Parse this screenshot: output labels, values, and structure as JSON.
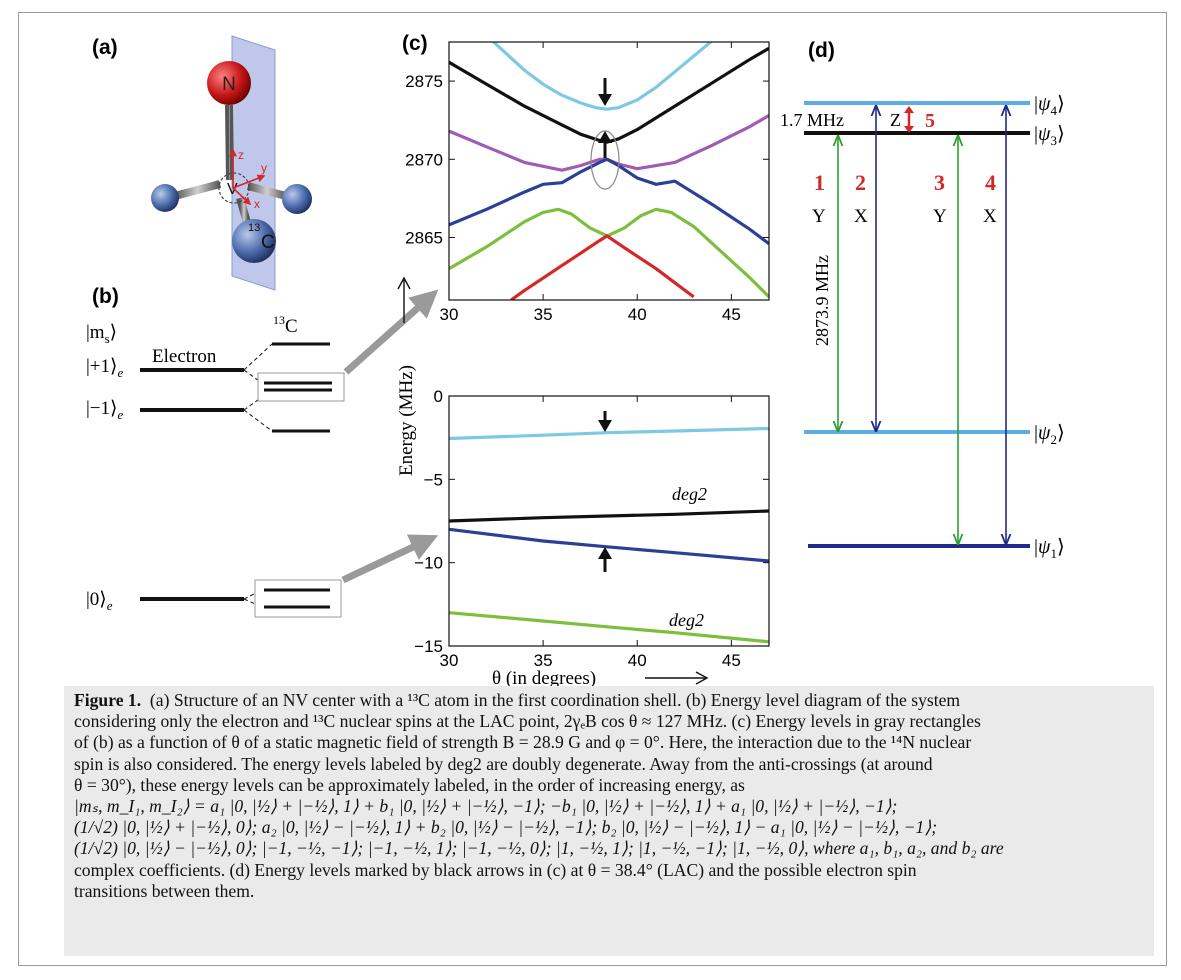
{
  "panels": {
    "a": {
      "label": "(a)",
      "atoms": {
        "n": "N",
        "v": "V",
        "c13_sup": "13",
        "c13": "C"
      },
      "axes": [
        "z",
        "y",
        "x"
      ]
    },
    "b": {
      "label": "(b)",
      "ms_label": "|m",
      "ms_sub": "s",
      "ms_close": "⟩",
      "electron": "Electron",
      "c13_sup": "13",
      "c13": "C",
      "state_plus1": "|+1⟩",
      "state_minus1": "|−1⟩",
      "state_zero": "|0⟩",
      "sub_e": "e"
    },
    "c": {
      "label": "(c)",
      "ylabel": "Energy (MHz)",
      "xlabel": "θ (in degrees)",
      "deg2": "deg2"
    },
    "d": {
      "label": "(d)",
      "levels": [
        "|ψ4⟩",
        "|ψ3⟩",
        "|ψ2⟩",
        "|ψ1⟩"
      ],
      "level_names": [
        "ψ4",
        "ψ3",
        "ψ2",
        "ψ1"
      ],
      "split_label": "1.7 MHz",
      "z_label": "Z",
      "five": "5",
      "transition_numbers": [
        "1",
        "2",
        "3",
        "4"
      ],
      "transition_axes": [
        "Y",
        "X",
        "Y",
        "X"
      ],
      "big_gap": "2873.9 MHz",
      "colors": {
        "green": "#2ca02c",
        "navy": "#1f2a8a",
        "red": "#d62728",
        "light_blue": "#5dade2",
        "black": "#111111"
      }
    }
  },
  "chart_data": [
    {
      "type": "line",
      "title": "",
      "xlabel": "",
      "ylabel": "",
      "xlim": [
        30,
        47
      ],
      "ylim": [
        2861,
        2877.5
      ],
      "xticks": [
        30,
        35,
        40,
        45
      ],
      "yticks": [
        2865,
        2870,
        2875
      ],
      "series": [
        {
          "color": "#7ec8e3",
          "x": [
            30,
            31,
            32,
            33,
            34,
            35,
            36,
            37,
            37.8,
            38.4,
            39,
            40,
            41,
            42,
            43,
            44,
            45,
            46,
            47
          ],
          "y": [
            2880.4,
            2879.0,
            2877.9,
            2876.8,
            2875.7,
            2874.8,
            2874.1,
            2873.6,
            2873.3,
            2873.2,
            2873.3,
            2873.8,
            2874.6,
            2875.6,
            2876.6,
            2877.6,
            2878.6,
            2879.6,
            2880.6
          ]
        },
        {
          "color": "#111111",
          "x": [
            30,
            32,
            34,
            36,
            37,
            38,
            38.4,
            39,
            40,
            42,
            44,
            46,
            47
          ],
          "y": [
            2876.2,
            2874.8,
            2873.4,
            2872.2,
            2871.6,
            2871.2,
            2871.1,
            2871.3,
            2871.9,
            2873.4,
            2874.9,
            2876.4,
            2877.1
          ]
        },
        {
          "color": "#a05cb4",
          "x": [
            30,
            32,
            34,
            36,
            37,
            38,
            38.4,
            39,
            40,
            42,
            44,
            46,
            47
          ],
          "y": [
            2871.8,
            2870.8,
            2869.8,
            2869.3,
            2869.6,
            2870.0,
            2870.0,
            2869.7,
            2869.4,
            2869.8,
            2870.9,
            2872.1,
            2872.8
          ]
        },
        {
          "color": "#2b3f96",
          "x": [
            30,
            32,
            34,
            35,
            36,
            37,
            38,
            38.4,
            39,
            40,
            41,
            42,
            44,
            46,
            47
          ],
          "y": [
            2865.8,
            2866.8,
            2867.9,
            2868.4,
            2868.5,
            2869.2,
            2869.8,
            2870.0,
            2869.6,
            2868.8,
            2868.4,
            2868.6,
            2867.1,
            2865.5,
            2864.6
          ]
        },
        {
          "color": "#7cbf3c",
          "x": [
            30,
            31,
            32,
            33,
            34,
            35,
            35.8,
            36.5,
            37.5,
            38.4,
            39.3,
            40.2,
            41,
            41.8,
            43,
            44,
            45,
            46,
            47
          ],
          "y": [
            2863.0,
            2863.7,
            2864.4,
            2865.2,
            2866.0,
            2866.6,
            2866.8,
            2866.5,
            2865.6,
            2865.1,
            2865.6,
            2866.4,
            2866.8,
            2866.6,
            2865.7,
            2864.6,
            2863.5,
            2862.4,
            2861.2
          ]
        },
        {
          "color": "#d62728",
          "x": [
            33.3,
            34,
            35,
            36,
            37,
            38,
            38.4,
            39,
            40,
            41,
            42,
            43
          ],
          "y": [
            2861.0,
            2861.6,
            2862.4,
            2863.2,
            2864.0,
            2864.8,
            2865.1,
            2864.6,
            2863.8,
            2863.0,
            2862.1,
            2861.2
          ]
        }
      ]
    },
    {
      "type": "line",
      "title": "",
      "xlabel": "θ (in degrees)",
      "ylabel": "Energy (MHz)",
      "xlim": [
        30,
        47
      ],
      "ylim": [
        -15,
        0
      ],
      "xticks": [
        30,
        35,
        40,
        45
      ],
      "yticks": [
        0,
        -5,
        -10,
        -15
      ],
      "series": [
        {
          "color": "#7ec8e3",
          "x": [
            30,
            35,
            38.4,
            42,
            47
          ],
          "y": [
            -2.55,
            -2.35,
            -2.2,
            -2.1,
            -1.95
          ]
        },
        {
          "color": "#111111",
          "x": [
            30,
            35,
            38.4,
            42,
            47
          ],
          "y": [
            -7.5,
            -7.3,
            -7.2,
            -7.1,
            -6.9
          ]
        },
        {
          "color": "#2b3f96",
          "x": [
            30,
            35,
            38.4,
            42,
            47
          ],
          "y": [
            -8.0,
            -8.7,
            -9.05,
            -9.4,
            -9.9
          ]
        },
        {
          "color": "#7cbf3c",
          "x": [
            30,
            35,
            38.4,
            42,
            47
          ],
          "y": [
            -13.0,
            -13.5,
            -13.85,
            -14.2,
            -14.75
          ]
        }
      ]
    }
  ],
  "caption": {
    "fig_label": "Figure 1.",
    "line1": "(a) Structure of an NV center with a ¹³C atom in the first coordination shell. (b) Energy level diagram of the system",
    "line2": "considering only the electron and ¹³C nuclear spins at the LAC point, 2γₑB cos θ ≈ 127 MHz. (c) Energy levels in gray rectangles",
    "line3": "of (b) as a function of θ of a static magnetic field of strength B = 28.9 G and φ = 0°. Here, the interaction due to the ¹⁴N nuclear",
    "line4": "spin is also considered. The energy levels labeled by deg2 are doubly degenerate. Away from the anti-crossings (at around",
    "line5": "θ = 30°), these energy levels can be approximately labeled, in the order of increasing energy, as",
    "line6": "|mₛ, m_I₁, m_I₂⟩ = a₁ |0, |½⟩ + |−½⟩, 1⟩ + b₁ |0, |½⟩ + |−½⟩, −1⟩; −b₁ |0, |½⟩ + |−½⟩, 1⟩ + a₁ |0, |½⟩ + |−½⟩, −1⟩;",
    "line7": "(1/√2) |0, |½⟩ + |−½⟩, 0⟩; a₂ |0, |½⟩ − |−½⟩, 1⟩ + b₂ |0, |½⟩ − |−½⟩, −1⟩; b₂ |0, |½⟩ − |−½⟩, 1⟩ − a₁ |0, |½⟩ − |−½⟩, −1⟩;",
    "line8": "(1/√2) |0, |½⟩ − |−½⟩, 0⟩; |−1, −½, −1⟩; |−1, −½, 1⟩; |−1, −½, 0⟩; |1, −½, 1⟩; |1, −½, −1⟩; |1, −½, 0⟩, where a₁, b₁, a₂, and b₂ are",
    "line9": "complex coefficients. (d) Energy levels marked by black arrows in (c) at θ = 38.4° (LAC) and the possible electron spin",
    "line10": "transitions between them."
  }
}
